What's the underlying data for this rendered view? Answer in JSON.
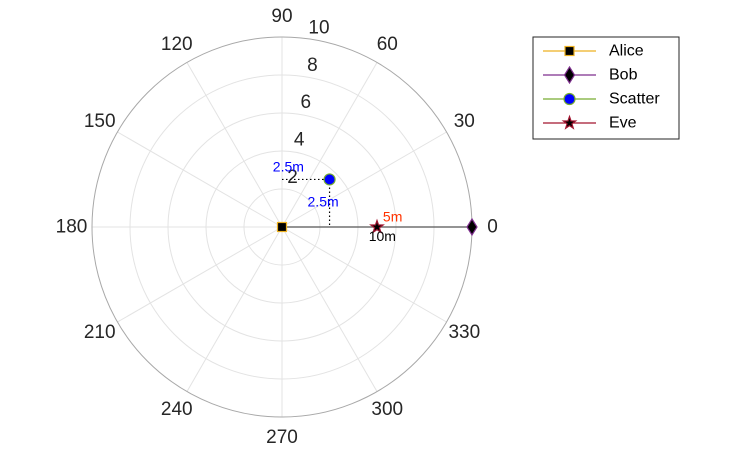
{
  "chart_data": {
    "type": "polar",
    "theta_unit": "degrees",
    "theta_ticks": [
      0,
      30,
      60,
      90,
      120,
      150,
      180,
      210,
      240,
      270,
      300,
      330
    ],
    "theta_tick_labels": [
      "0",
      "30",
      "60",
      "90",
      "120",
      "150",
      "180",
      "210",
      "240",
      "270",
      "300",
      "330"
    ],
    "r_ticks": [
      2,
      4,
      6,
      8,
      10
    ],
    "r_tick_labels": [
      "2",
      "4",
      "6",
      "8",
      "10"
    ],
    "r_lim": [
      0,
      10
    ],
    "r_axis_angle_deg": 80,
    "grid": true,
    "legend_position": "top-right",
    "series": [
      {
        "name": "Alice",
        "marker": "square",
        "line_color": "#EDB120",
        "face_color": "#000000",
        "points": [
          {
            "theta": 0,
            "r": 0
          }
        ]
      },
      {
        "name": "Bob",
        "marker": "diamond",
        "line_color": "#7E2F8E",
        "face_color": "#000000",
        "points": [
          {
            "theta": 0,
            "r": 10
          }
        ]
      },
      {
        "name": "Scatter",
        "marker": "circle",
        "line_color": "#77AC30",
        "face_color": "#0000FF",
        "points": [
          {
            "theta": 45,
            "r": 3.54
          }
        ]
      },
      {
        "name": "Eve",
        "marker": "pentagram",
        "line_color": "#A2142F",
        "face_color": "#000000",
        "points": [
          {
            "theta": 0,
            "r": 5
          }
        ]
      }
    ],
    "connecting_line": {
      "from": {
        "theta": 0,
        "r": 0
      },
      "to": {
        "theta": 0,
        "r": 10
      },
      "color": "#555555"
    },
    "projection_lines": {
      "color": "#000000",
      "style": "dotted"
    },
    "annotations": [
      {
        "text": "2.5m",
        "color": "#0000FF",
        "theta": 84,
        "r": 3.2
      },
      {
        "text": "2.5m",
        "color": "#0000FF",
        "theta": 32,
        "r": 2.55
      },
      {
        "text": "5m",
        "color": "#FF3300",
        "theta": 5.5,
        "r": 5.85
      },
      {
        "text": "10m",
        "color": "#000000",
        "theta": -5,
        "r": 5.3
      }
    ]
  }
}
